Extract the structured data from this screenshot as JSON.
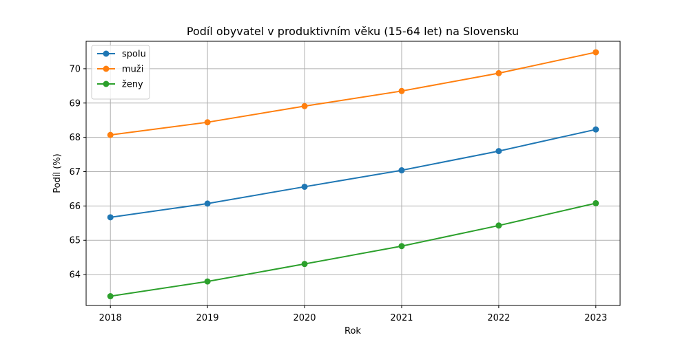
{
  "chart_data": {
    "type": "line",
    "title": "Podíl obyvatel v produktivním věku (15-64 let) na Slovensku",
    "xlabel": "Rok",
    "ylabel": "Podíl (%)",
    "x": [
      2018,
      2019,
      2020,
      2021,
      2022,
      2023
    ],
    "xlim": [
      2017.75,
      2023.25
    ],
    "ylim": [
      63.1,
      70.8
    ],
    "yticks": [
      64,
      65,
      66,
      67,
      68,
      69,
      70
    ],
    "grid": true,
    "legend_position": "top-left",
    "series": [
      {
        "name": "spolu",
        "color": "#1f77b4",
        "values": [
          65.67,
          66.07,
          66.56,
          67.04,
          67.6,
          68.23
        ]
      },
      {
        "name": "muži",
        "color": "#ff7f0e",
        "values": [
          68.07,
          68.44,
          68.91,
          69.35,
          69.87,
          70.48
        ]
      },
      {
        "name": "ženy",
        "color": "#2ca02c",
        "values": [
          63.37,
          63.8,
          64.31,
          64.83,
          65.43,
          66.08
        ]
      }
    ]
  }
}
